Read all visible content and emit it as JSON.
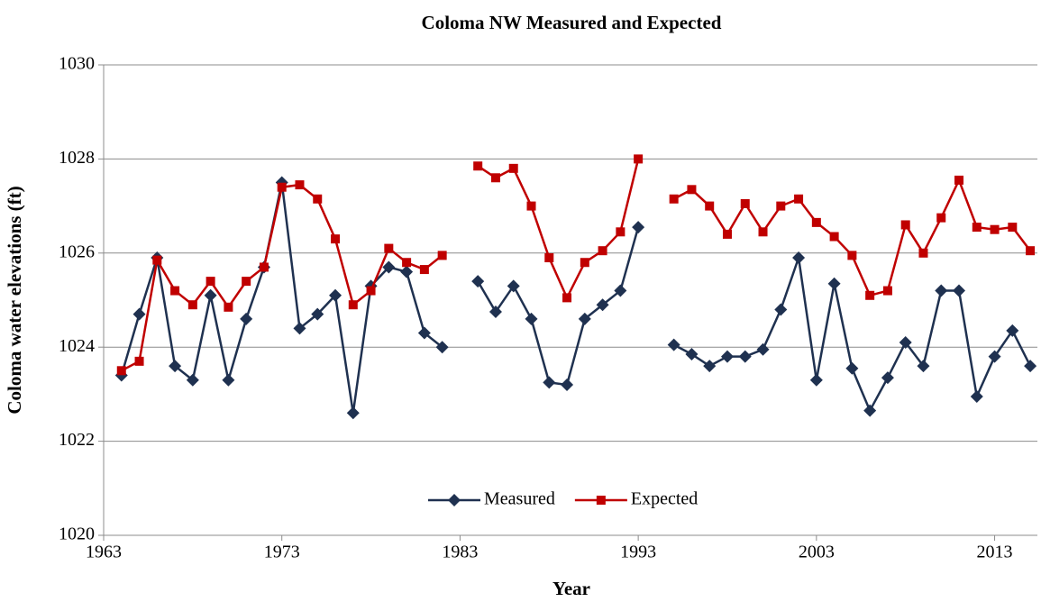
{
  "chart_data": {
    "type": "line",
    "title": "Coloma NW Measured and Expected",
    "x_label": "Year",
    "y_label": "Coloma water elevations (ft)",
    "x": [
      1964,
      1965,
      1966,
      1967,
      1968,
      1969,
      1970,
      1971,
      1972,
      1973,
      1974,
      1975,
      1976,
      1977,
      1978,
      1979,
      1980,
      1981,
      1982,
      1983,
      1984,
      1985,
      1986,
      1987,
      1988,
      1989,
      1990,
      1991,
      1992,
      1993,
      1994,
      1995,
      1996,
      1997,
      1998,
      1999,
      2000,
      2001,
      2002,
      2003,
      2004,
      2005,
      2006,
      2007,
      2008,
      2009,
      2010,
      2011,
      2012,
      2013,
      2014,
      2015
    ],
    "series": [
      {
        "name": "Measured",
        "color": "#1f3150",
        "marker": "diamond",
        "values": [
          1023.4,
          1024.7,
          1025.9,
          1023.6,
          1023.3,
          1025.1,
          1023.3,
          1024.6,
          1025.7,
          1027.5,
          1024.4,
          1024.7,
          1025.1,
          1022.6,
          1025.3,
          1025.7,
          1025.6,
          1024.3,
          1024.0,
          null,
          1025.4,
          1024.75,
          1025.3,
          1024.6,
          1023.25,
          1023.2,
          1024.6,
          1024.9,
          1025.2,
          1026.55,
          null,
          1024.05,
          1023.85,
          1023.6,
          1023.8,
          1023.8,
          1023.95,
          1024.8,
          1025.9,
          1023.3,
          1025.35,
          1023.55,
          1022.65,
          1023.35,
          1024.1,
          1023.6,
          1025.2,
          1025.2,
          1022.95,
          1023.8,
          1024.35,
          1023.6
        ]
      },
      {
        "name": "Expected",
        "color": "#c00000",
        "marker": "square",
        "values": [
          1023.5,
          1023.7,
          1025.85,
          1025.2,
          1024.9,
          1025.4,
          1024.85,
          1025.4,
          1025.7,
          1027.4,
          1027.45,
          1027.15,
          1026.3,
          1024.9,
          1025.2,
          1026.1,
          1025.8,
          1025.65,
          1025.95,
          null,
          1027.85,
          1027.6,
          1027.8,
          1027.0,
          1025.9,
          1025.05,
          1025.8,
          1026.05,
          1026.45,
          1028.0,
          null,
          1027.15,
          1027.35,
          1027.0,
          1026.4,
          1027.05,
          1026.45,
          1027.0,
          1027.15,
          1026.65,
          1026.35,
          1025.95,
          1025.1,
          1025.2,
          1026.6,
          1026.0,
          1026.75,
          1027.55,
          1026.55,
          1026.5,
          1026.55,
          1026.05
        ]
      }
    ],
    "xlim": [
      1963,
      2015.4
    ],
    "xticks": [
      1963,
      1973,
      1983,
      1993,
      2003,
      2013
    ],
    "ylim": [
      1020,
      1030
    ],
    "yticks": [
      1020,
      1022,
      1024,
      1026,
      1028,
      1030
    ],
    "grid": true,
    "legend": "bottom"
  }
}
